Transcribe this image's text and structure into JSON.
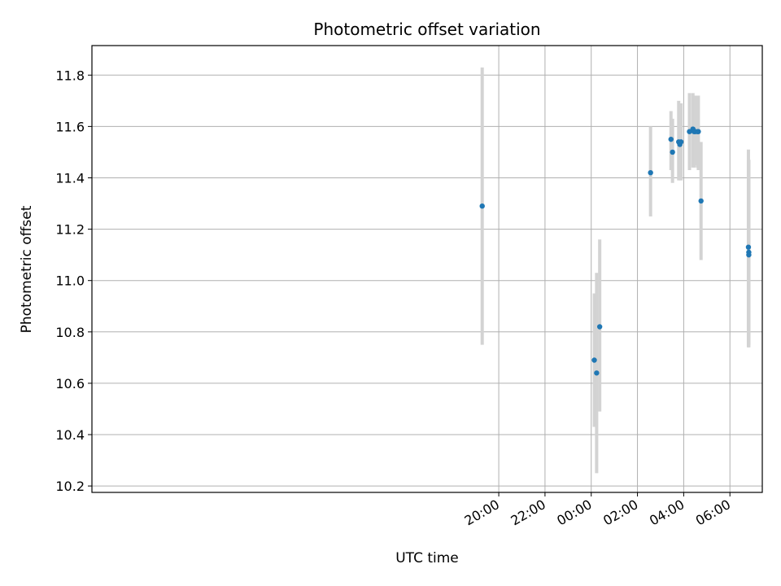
{
  "chart_data": {
    "type": "scatter",
    "title": "Photometric offset variation",
    "xlabel": "UTC time",
    "ylabel": "Photometric offset",
    "x_unit": "hours relative to 00:00 UTC",
    "xlim": [
      -21.6,
      7.4
    ],
    "ylim": [
      10.175,
      11.915
    ],
    "xticks": [
      {
        "value": -4,
        "label": "20:00"
      },
      {
        "value": -2,
        "label": "22:00"
      },
      {
        "value": 0,
        "label": "00:00"
      },
      {
        "value": 2,
        "label": "02:00"
      },
      {
        "value": 4,
        "label": "04:00"
      },
      {
        "value": 6,
        "label": "06:00"
      }
    ],
    "yticks": [
      {
        "value": 10.2,
        "label": "10.2"
      },
      {
        "value": 10.4,
        "label": "10.4"
      },
      {
        "value": 10.6,
        "label": "10.6"
      },
      {
        "value": 10.8,
        "label": "10.8"
      },
      {
        "value": 11.0,
        "label": "11.0"
      },
      {
        "value": 11.2,
        "label": "11.2"
      },
      {
        "value": 11.4,
        "label": "11.4"
      },
      {
        "value": 11.6,
        "label": "11.6"
      },
      {
        "value": 11.8,
        "label": "11.8"
      }
    ],
    "grid": true,
    "point_color": "#1f77b4",
    "errorbar_color": "#d3d3d3",
    "points": [
      {
        "time": "19:17",
        "y": 11.29,
        "ylow": 10.75,
        "yhigh": 11.83
      },
      {
        "time": "00:08",
        "y": 10.69,
        "ylow": 10.43,
        "yhigh": 10.95
      },
      {
        "time": "00:14",
        "y": 10.64,
        "ylow": 10.25,
        "yhigh": 11.03
      },
      {
        "time": "00:22",
        "y": 10.82,
        "ylow": 10.49,
        "yhigh": 11.16
      },
      {
        "time": "02:34",
        "y": 11.42,
        "ylow": 11.25,
        "yhigh": 11.6
      },
      {
        "time": "03:27",
        "y": 11.55,
        "ylow": 11.43,
        "yhigh": 11.66
      },
      {
        "time": "03:31",
        "y": 11.5,
        "ylow": 11.38,
        "yhigh": 11.63
      },
      {
        "time": "03:47",
        "y": 11.54,
        "ylow": 11.39,
        "yhigh": 11.7
      },
      {
        "time": "03:50",
        "y": 11.53,
        "ylow": 11.39,
        "yhigh": 11.69
      },
      {
        "time": "03:53",
        "y": 11.54,
        "ylow": 11.39,
        "yhigh": 11.69
      },
      {
        "time": "04:15",
        "y": 11.58,
        "ylow": 11.43,
        "yhigh": 11.73
      },
      {
        "time": "04:24",
        "y": 11.59,
        "ylow": 11.44,
        "yhigh": 11.73
      },
      {
        "time": "04:27",
        "y": 11.58,
        "ylow": 11.44,
        "yhigh": 11.72
      },
      {
        "time": "04:30",
        "y": 11.58,
        "ylow": 11.45,
        "yhigh": 11.72
      },
      {
        "time": "04:36",
        "y": 11.58,
        "ylow": 11.44,
        "yhigh": 11.72
      },
      {
        "time": "04:38",
        "y": 11.58,
        "ylow": 11.43,
        "yhigh": 11.72
      },
      {
        "time": "04:45",
        "y": 11.31,
        "ylow": 11.08,
        "yhigh": 11.54
      },
      {
        "time": "06:48",
        "y": 11.13,
        "ylow": 10.74,
        "yhigh": 11.51
      },
      {
        "time": "06:49",
        "y": 11.11,
        "ylow": 10.75,
        "yhigh": 11.47
      },
      {
        "time": "06:49",
        "y": 11.1,
        "ylow": 10.74,
        "yhigh": 11.47
      }
    ]
  }
}
